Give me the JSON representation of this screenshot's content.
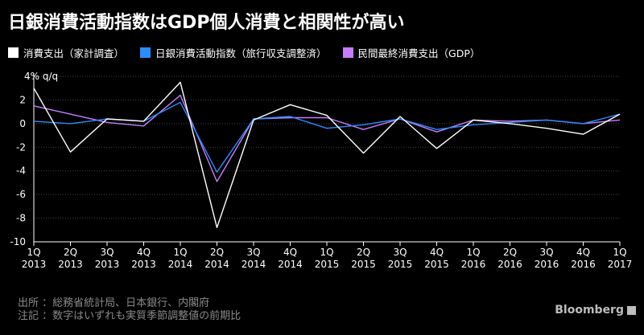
{
  "title": "日銀消費活動指数はGDP個人消費と相関性が高い",
  "footnotes": {
    "source": "出所 ：総務省統計局、日本銀行、内閣府",
    "note": "注記 ：数字はいずれも実質季節調整値の前期比"
  },
  "brand": {
    "name": "Bloomberg",
    "icon": "bloomberg-chart-icon"
  },
  "chart_data": {
    "type": "line",
    "title": "日銀消費活動指数はGDP個人消費と相関性が高い",
    "ylabel": "% q/q",
    "y_unit_label": "4% q/q",
    "ylim": [
      -10,
      4
    ],
    "yticks": [
      2,
      0,
      -2,
      -4,
      -6,
      -8,
      -10
    ],
    "grid": true,
    "legend_position": "top-left",
    "categories": [
      [
        "1Q",
        "2013"
      ],
      [
        "2Q",
        "2013"
      ],
      [
        "3Q",
        "2013"
      ],
      [
        "4Q",
        "2013"
      ],
      [
        "1Q",
        "2014"
      ],
      [
        "2Q",
        "2014"
      ],
      [
        "3Q",
        "2014"
      ],
      [
        "4Q",
        "2014"
      ],
      [
        "1Q",
        "2015"
      ],
      [
        "2Q",
        "2015"
      ],
      [
        "3Q",
        "2015"
      ],
      [
        "4Q",
        "2015"
      ],
      [
        "1Q",
        "2016"
      ],
      [
        "2Q",
        "2016"
      ],
      [
        "3Q",
        "2016"
      ],
      [
        "4Q",
        "2016"
      ],
      [
        "1Q",
        "2017"
      ]
    ],
    "series": [
      {
        "name": "消費支出（家計調査）",
        "color": "#ffffff",
        "values": [
          3.0,
          -2.4,
          0.4,
          0.2,
          3.5,
          -8.8,
          0.3,
          1.6,
          0.7,
          -2.5,
          0.6,
          -2.1,
          0.3,
          0.0,
          -0.4,
          -0.9,
          0.8
        ]
      },
      {
        "name": "日銀消費活動指数（旅行収支調整済）",
        "color": "#2a8dff",
        "values": [
          0.2,
          0.0,
          0.4,
          0.2,
          1.8,
          -4.1,
          0.4,
          0.6,
          -0.4,
          -0.1,
          0.4,
          -0.5,
          -0.1,
          0.1,
          0.3,
          0.0,
          0.8
        ]
      },
      {
        "name": "民間最終消費支出（GDP）",
        "color": "#c77dff",
        "values": [
          1.5,
          0.8,
          0.1,
          -0.2,
          2.4,
          -4.9,
          0.4,
          0.5,
          0.5,
          -0.5,
          0.4,
          -0.7,
          0.3,
          0.2,
          0.3,
          0.0,
          0.3
        ]
      }
    ]
  }
}
